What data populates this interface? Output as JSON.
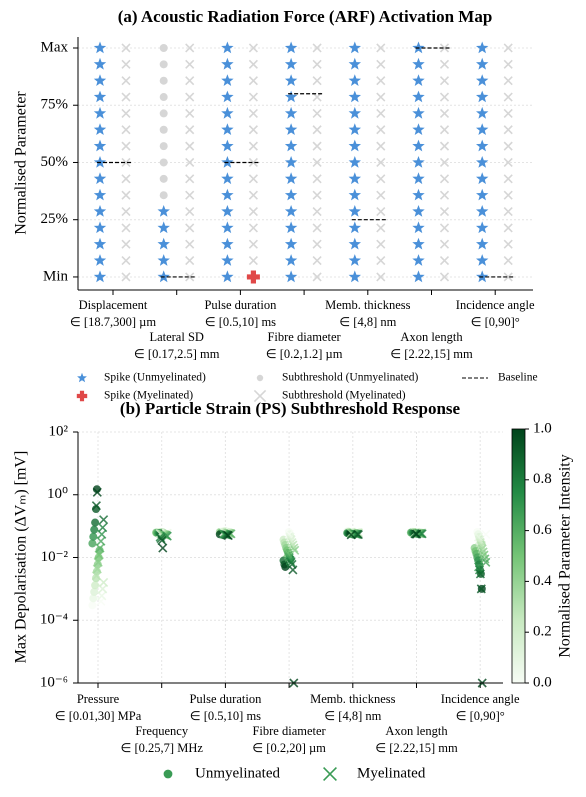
{
  "chart_data": [
    {
      "type": "activation_map",
      "title": "(a) Acoustic Radiation Force (ARF) Activation Map",
      "ylabel": "Normalised Parameter",
      "categories": [
        "Displacement",
        "Lateral SD",
        "Pulse duration",
        "Fibre diameter",
        "Memb. thickness",
        "Axon length",
        "Incidence angle"
      ],
      "category_ranges": [
        "∈ [18.7,300] µm",
        "∈ [0.17,2.5] mm",
        "∈ [0.5,10] ms",
        "∈ [0.2,1.2] µm",
        "∈ [4,8] nm",
        "∈ [2.22,15] mm",
        "∈ [0,90]°"
      ],
      "ylim": [
        -5.7,
        104.8
      ],
      "yticks": [
        {
          "value": 0,
          "label": "Min"
        },
        {
          "value": 25,
          "label": "25%"
        },
        {
          "value": 50,
          "label": "50%"
        },
        {
          "value": 75,
          "label": "75%"
        },
        {
          "value": 100,
          "label": "Max"
        }
      ],
      "grid": true,
      "series": [
        {
          "name": "Spike (Unmyelinated)",
          "column": "unmyelinated",
          "marker": "star",
          "color": "#4a90d9",
          "values": [
            [
              0,
              7.14,
              14.29,
              21.43,
              28.57,
              35.71,
              42.86,
              50,
              57.14,
              64.29,
              71.43,
              78.57,
              85.71,
              92.86,
              100
            ],
            [
              0,
              7.14,
              14.29,
              21.43,
              28.57
            ],
            [
              0,
              7.14,
              14.29,
              21.43,
              28.57,
              35.71,
              42.86,
              50,
              57.14,
              64.29,
              71.43,
              78.57,
              85.71,
              92.86,
              100
            ],
            [
              0,
              7.14,
              14.29,
              21.43,
              28.57,
              35.71,
              42.86,
              50,
              57.14,
              64.29,
              71.43,
              78.57,
              85.71,
              92.86,
              100
            ],
            [
              0,
              7.14,
              14.29,
              21.43,
              28.57,
              35.71,
              42.86,
              50,
              57.14,
              64.29,
              71.43,
              78.57,
              85.71,
              92.86,
              100
            ],
            [
              0,
              7.14,
              14.29,
              21.43,
              28.57,
              35.71,
              42.86,
              50,
              57.14,
              64.29,
              71.43,
              78.57,
              85.71,
              92.86,
              100
            ],
            [
              0,
              7.14,
              14.29,
              21.43,
              28.57,
              35.71,
              42.86,
              50,
              57.14,
              64.29,
              71.43,
              78.57,
              85.71,
              92.86,
              100
            ]
          ]
        },
        {
          "name": "Spike (Myelinated)",
          "column": "myelinated",
          "marker": "plus",
          "color": "#e04848",
          "values": [
            [],
            [],
            [
              0
            ],
            [],
            [],
            [],
            []
          ]
        },
        {
          "name": "Subthreshold (Unmyelinated)",
          "column": "unmyelinated",
          "marker": "circle",
          "color": "#d6d6d6",
          "values": [
            [],
            [
              35.71,
              42.86,
              50,
              57.14,
              64.29,
              71.43,
              78.57,
              85.71,
              92.86,
              100
            ],
            [],
            [],
            [],
            [],
            []
          ]
        },
        {
          "name": "Subthreshold (Myelinated)",
          "column": "myelinated",
          "marker": "x",
          "color": "#d6d6d6",
          "values": [
            [
              0,
              7.14,
              14.29,
              21.43,
              28.57,
              35.71,
              42.86,
              50,
              57.14,
              64.29,
              71.43,
              78.57,
              85.71,
              92.86,
              100
            ],
            [
              0,
              7.14,
              14.29,
              21.43,
              28.57,
              35.71,
              42.86,
              50,
              57.14,
              64.29,
              71.43,
              78.57,
              85.71,
              92.86,
              100
            ],
            [
              7.14,
              14.29,
              21.43,
              28.57,
              35.71,
              42.86,
              50,
              57.14,
              64.29,
              71.43,
              78.57,
              85.71,
              92.86,
              100
            ],
            [
              0,
              7.14,
              14.29,
              21.43,
              28.57,
              35.71,
              42.86,
              50,
              57.14,
              64.29,
              71.43,
              78.57,
              85.71,
              92.86,
              100
            ],
            [
              0,
              7.14,
              14.29,
              21.43,
              28.57,
              35.71,
              42.86,
              50,
              57.14,
              64.29,
              71.43,
              78.57,
              85.71,
              92.86,
              100
            ],
            [
              0,
              7.14,
              14.29,
              21.43,
              28.57,
              35.71,
              42.86,
              50,
              57.14,
              64.29,
              71.43,
              78.57,
              85.71,
              92.86,
              100
            ],
            [
              0,
              7.14,
              14.29,
              21.43,
              28.57,
              35.71,
              42.86,
              50,
              57.14,
              64.29,
              71.43,
              78.57,
              85.71,
              92.86,
              100
            ]
          ]
        }
      ],
      "baseline": {
        "name": "Baseline",
        "color": "#000000",
        "values": [
          50,
          0,
          50,
          80,
          25,
          100,
          0
        ]
      }
    },
    {
      "type": "log_strip",
      "title": "(b) Particle Strain (PS) Subthreshold Response",
      "ylabel": "Max Depolarisation (ΔVₘ) [mV]",
      "categories": [
        "Pressure",
        "Frequency",
        "Pulse duration",
        "Fibre diameter",
        "Memb. thickness",
        "Axon length",
        "Incidence angle"
      ],
      "category_ranges": [
        "∈ [0.01,30] MPa",
        "∈ [0.25,7] MHz",
        "∈ [0.5,10] ms",
        "∈ [0.2,20] µm",
        "∈ [4,8] nm",
        "∈ [2.22,15] mm",
        "∈ [0,90]°"
      ],
      "log_y": true,
      "ylim": [
        1e-06,
        100
      ],
      "yticks": [
        {
          "value": 1e-06,
          "label": "10⁻⁶"
        },
        {
          "value": 0.0001,
          "label": "10⁻⁴"
        },
        {
          "value": 0.01,
          "label": "10⁻²"
        },
        {
          "value": 1,
          "label": "10⁰"
        },
        {
          "value": 100,
          "label": "10²"
        }
      ],
      "grid": true,
      "levels": [
        0,
        0.07,
        0.14,
        0.21,
        0.29,
        0.36,
        0.43,
        0.5,
        0.57,
        0.64,
        0.71,
        0.79,
        0.86,
        0.93,
        1
      ],
      "series": [
        {
          "name": "Unmyelinated",
          "marker": "circle",
          "color": "#3a9b55",
          "values": [
            [
              0.0003,
              0.0005,
              0.0008,
              0.0013,
              0.0022,
              0.0036,
              0.006,
              0.01,
              0.017,
              0.028,
              0.046,
              0.077,
              0.13,
              0.35,
              1.5
            ],
            [
              0.065,
              0.065,
              0.064,
              0.064,
              0.063,
              0.063,
              0.062,
              0.062,
              0.061,
              0.06,
              0.06,
              0.059,
              0.058,
              0.057,
              0.056
            ],
            [
              0.07,
              0.069,
              0.068,
              0.067,
              0.066,
              0.065,
              0.064,
              0.063,
              0.062,
              0.061,
              0.06,
              0.059,
              0.058,
              0.056,
              0.055
            ],
            [
              0.065,
              0.055,
              0.045,
              0.037,
              0.03,
              0.025,
              0.02,
              0.017,
              0.014,
              0.012,
              0.01,
              0.009,
              0.008,
              0.006,
              0.005
            ],
            [
              0.068,
              0.067,
              0.066,
              0.066,
              0.065,
              0.064,
              0.063,
              0.062,
              0.062,
              0.061,
              0.06,
              0.059,
              0.058,
              0.058,
              0.057
            ],
            [
              0.066,
              0.066,
              0.065,
              0.065,
              0.064,
              0.064,
              0.063,
              0.063,
              0.062,
              0.062,
              0.061,
              0.061,
              0.06,
              0.06,
              0.059
            ],
            [
              0.065,
              0.055,
              0.045,
              0.037,
              0.03,
              0.025,
              0.02,
              0.016,
              0.013,
              0.01,
              0.008,
              0.006,
              0.004,
              0.003,
              0.001
            ]
          ]
        },
        {
          "name": "Myelinated",
          "marker": "x",
          "color": "#3a9b55",
          "values": [
            [
              0.0004,
              0.0006,
              0.001,
              0.0016,
              0.0026,
              0.0043,
              0.007,
              0.012,
              0.02,
              0.033,
              0.055,
              0.09,
              0.16,
              0.45,
              1.2
            ],
            [
              0.06,
              0.059,
              0.058,
              0.057,
              0.056,
              0.055,
              0.054,
              0.053,
              0.052,
              0.05,
              0.048,
              0.045,
              0.04,
              0.035,
              0.02
            ],
            [
              0.065,
              0.064,
              0.063,
              0.062,
              0.061,
              0.06,
              0.059,
              0.058,
              0.057,
              0.056,
              0.055,
              0.054,
              0.053,
              0.052,
              0.05
            ],
            [
              0.055,
              0.045,
              0.037,
              0.03,
              0.025,
              0.02,
              0.017,
              0.014,
              0.012,
              0.01,
              0.008,
              0.007,
              0.006,
              0.004,
              1e-06
            ],
            [
              0.064,
              0.063,
              0.062,
              0.061,
              0.061,
              0.06,
              0.059,
              0.058,
              0.058,
              0.057,
              0.056,
              0.055,
              0.055,
              0.054,
              0.053
            ],
            [
              0.063,
              0.062,
              0.062,
              0.061,
              0.061,
              0.06,
              0.06,
              0.059,
              0.059,
              0.058,
              0.058,
              0.057,
              0.057,
              0.056,
              0.056
            ],
            [
              0.055,
              0.045,
              0.036,
              0.03,
              0.024,
              0.019,
              0.015,
              0.012,
              0.009,
              0.007,
              0.005,
              0.004,
              0.003,
              0.001,
              1e-06
            ]
          ]
        }
      ],
      "colorbar": {
        "label": "Normalised Parameter Intensity",
        "colormap": "Greens",
        "lim": [
          0,
          1
        ],
        "ticks": [
          {
            "value": 0,
            "label": "0.0"
          },
          0.2,
          0.4,
          0.6,
          0.8,
          {
            "value": 1,
            "label": "1.0"
          }
        ]
      }
    }
  ]
}
